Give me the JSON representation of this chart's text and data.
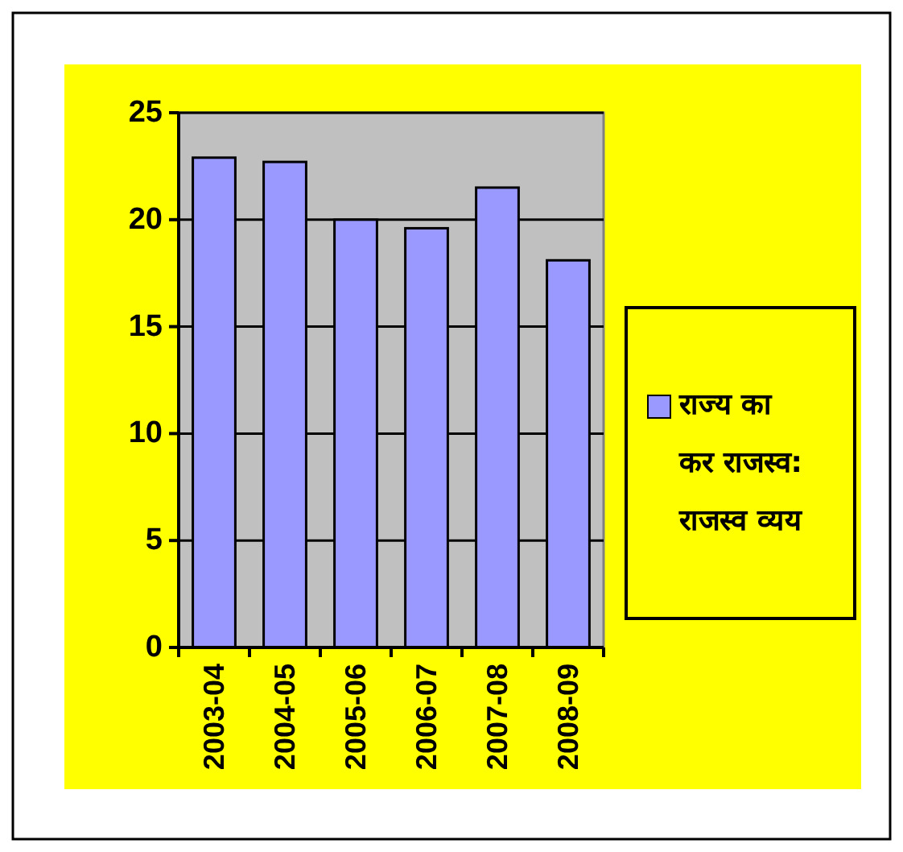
{
  "chart_data": {
    "type": "bar",
    "categories": [
      "2003-04",
      "2004-05",
      "2005-06",
      "2006-07",
      "2007-08",
      "2008-09"
    ],
    "series": [
      {
        "name": "राज्य का कर राजस्व: राजस्व व्यय",
        "color": "#9999ff",
        "values": [
          22.9,
          22.7,
          20.0,
          19.6,
          21.5,
          18.1
        ]
      }
    ],
    "ylim": [
      0,
      25
    ],
    "yticks": [
      0,
      5,
      10,
      15,
      20,
      25
    ],
    "grid": "y",
    "legend": "right"
  }
}
